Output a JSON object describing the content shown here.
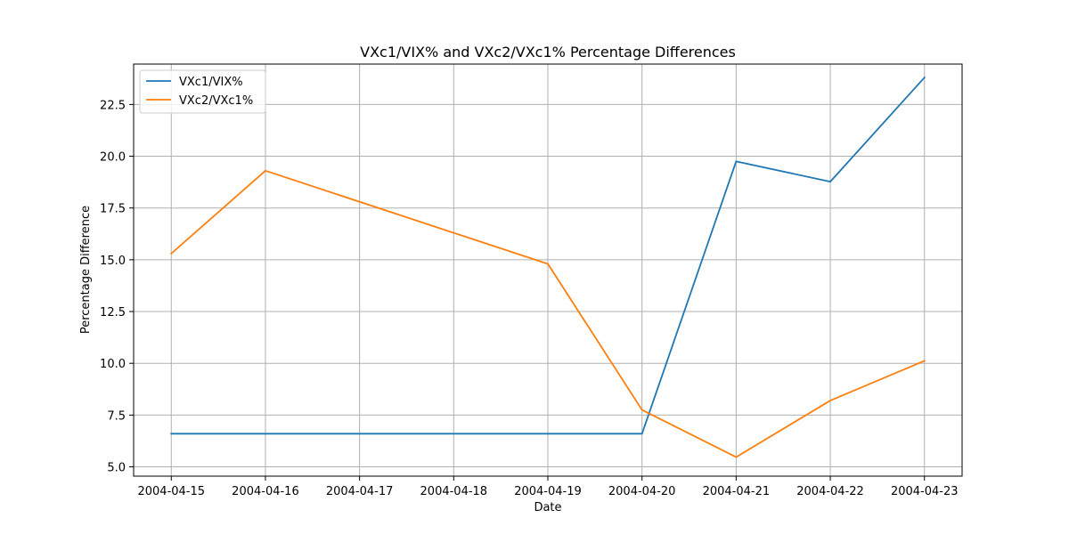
{
  "chart_data": {
    "type": "line",
    "title": "VXc1/VIX% and VXc2/VXc1% Percentage Differences",
    "xlabel": "Date",
    "ylabel": "Percentage Difference",
    "x": [
      "2004-04-15",
      "2004-04-16",
      "2004-04-17",
      "2004-04-18",
      "2004-04-19",
      "2004-04-20",
      "2004-04-21",
      "2004-04-22",
      "2004-04-23"
    ],
    "series": [
      {
        "name": "VXc1/VIX%",
        "color": "#1f77b4",
        "points": [
          {
            "x": "2004-04-15",
            "y": 6.6
          },
          {
            "x": "2004-04-20",
            "y": 6.6
          },
          {
            "x": "2004-04-21",
            "y": 19.75
          },
          {
            "x": "2004-04-22",
            "y": 18.77
          },
          {
            "x": "2004-04-23",
            "y": 23.8
          }
        ]
      },
      {
        "name": "VXc2/VXc1%",
        "color": "#ff7f0e",
        "points": [
          {
            "x": "2004-04-15",
            "y": 15.3
          },
          {
            "x": "2004-04-16",
            "y": 19.3
          },
          {
            "x": "2004-04-19",
            "y": 14.8
          },
          {
            "x": "2004-04-20",
            "y": 7.75
          },
          {
            "x": "2004-04-21",
            "y": 5.47
          },
          {
            "x": "2004-04-22",
            "y": 8.2
          },
          {
            "x": "2004-04-23",
            "y": 10.12
          }
        ]
      }
    ],
    "xlim": [
      "2004-04-14.6",
      "2004-04-23.4"
    ],
    "ylim": [
      4.55,
      24.45
    ],
    "yticks": [
      5.0,
      7.5,
      10.0,
      12.5,
      15.0,
      17.5,
      20.0,
      22.5
    ],
    "ytick_labels": [
      "5.0",
      "7.5",
      "10.0",
      "12.5",
      "15.0",
      "17.5",
      "20.0",
      "22.5"
    ],
    "grid": true,
    "legend_position": "upper-left"
  }
}
